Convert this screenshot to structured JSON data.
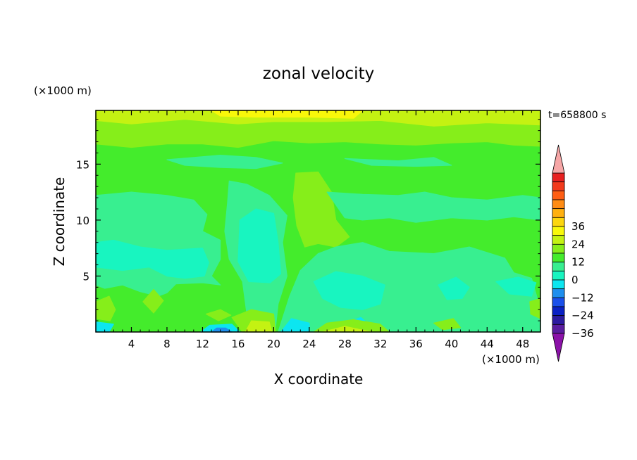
{
  "chart_data": {
    "type": "heatmap",
    "title": "zonal velocity",
    "xlabel": "X coordinate",
    "ylabel": "Z coordinate",
    "x_unit": "(×1000 m)",
    "y_unit": "(×1000 m)",
    "time_label": "t=658800 s",
    "xlim": [
      0,
      50
    ],
    "ylim": [
      0,
      19.8
    ],
    "xticks": [
      4,
      8,
      12,
      16,
      20,
      24,
      28,
      32,
      36,
      40,
      44,
      48
    ],
    "yticks": [
      5,
      10,
      15
    ],
    "background_level": 2,
    "regions": [
      {
        "level": 3,
        "points": [
          [
            0,
            19.8
          ],
          [
            50,
            19.8
          ],
          [
            50,
            16.6
          ],
          [
            47,
            16.7
          ],
          [
            44,
            17.0
          ],
          [
            40,
            16.9
          ],
          [
            36,
            16.7
          ],
          [
            32,
            16.8
          ],
          [
            28,
            17.0
          ],
          [
            24,
            16.9
          ],
          [
            20,
            17.1
          ],
          [
            16,
            16.5
          ],
          [
            12,
            16.8
          ],
          [
            8,
            16.8
          ],
          [
            4,
            16.5
          ],
          [
            0,
            16.8
          ]
        ]
      },
      {
        "level": 4,
        "points": [
          [
            0,
            19.8
          ],
          [
            50,
            19.8
          ],
          [
            50,
            18.5
          ],
          [
            44,
            18.7
          ],
          [
            38,
            18.4
          ],
          [
            32,
            18.9
          ],
          [
            26,
            18.8
          ],
          [
            20,
            18.8
          ],
          [
            16,
            18.6
          ],
          [
            10,
            19.0
          ],
          [
            4,
            18.6
          ],
          [
            0,
            18.9
          ]
        ]
      },
      {
        "level": 5,
        "points": [
          [
            13,
            19.8
          ],
          [
            30,
            19.8
          ],
          [
            29,
            19.1
          ],
          [
            24,
            19.2
          ],
          [
            18,
            19.2
          ],
          [
            14,
            19.3
          ]
        ]
      },
      {
        "level": 3,
        "points": [
          [
            22.5,
            14.2
          ],
          [
            25,
            14.3
          ],
          [
            26.5,
            12.5
          ],
          [
            27,
            10
          ],
          [
            28.5,
            8.5
          ],
          [
            27,
            7.6
          ],
          [
            25,
            7.9
          ],
          [
            23.5,
            7.6
          ],
          [
            22.6,
            9.5
          ],
          [
            22.2,
            12
          ]
        ]
      },
      {
        "level": 1,
        "points": [
          [
            0,
            12.2
          ],
          [
            4,
            12.5
          ],
          [
            8,
            12.2
          ],
          [
            11,
            11.8
          ],
          [
            12.5,
            10.5
          ],
          [
            12,
            9
          ],
          [
            14,
            8.2
          ],
          [
            14,
            6.5
          ],
          [
            13,
            5
          ],
          [
            14,
            4.2
          ],
          [
            12,
            4.4
          ],
          [
            9,
            4.3
          ],
          [
            8,
            3.5
          ],
          [
            7,
            3.2
          ],
          [
            5,
            3.6
          ],
          [
            3,
            4.2
          ],
          [
            1,
            3.9
          ],
          [
            0,
            4.2
          ]
        ]
      },
      {
        "level": 1,
        "points": [
          [
            15,
            13.5
          ],
          [
            17,
            13.2
          ],
          [
            19.5,
            12.2
          ],
          [
            21.5,
            10.4
          ],
          [
            21,
            8
          ],
          [
            21.5,
            5
          ],
          [
            20.5,
            2.5
          ],
          [
            20.2,
            0.3
          ],
          [
            18.5,
            0.4
          ],
          [
            17,
            1.5
          ],
          [
            16.5,
            4.5
          ],
          [
            15,
            6.5
          ],
          [
            14.5,
            9
          ],
          [
            14.8,
            11.5
          ]
        ]
      },
      {
        "level": 1,
        "points": [
          [
            20.5,
            0
          ],
          [
            50,
            0
          ],
          [
            50,
            2
          ],
          [
            49,
            4.8
          ],
          [
            47,
            5.3
          ],
          [
            46,
            6.6
          ],
          [
            42,
            7.6
          ],
          [
            38,
            7
          ],
          [
            33,
            7.2
          ],
          [
            30,
            8
          ],
          [
            27,
            7.6
          ],
          [
            25,
            7
          ],
          [
            23,
            5.5
          ],
          [
            21.8,
            3.2
          ]
        ]
      },
      {
        "level": 1,
        "points": [
          [
            26,
            12.5
          ],
          [
            30,
            12.3
          ],
          [
            34,
            12.2
          ],
          [
            37,
            12.5
          ],
          [
            40,
            12
          ],
          [
            44,
            11.8
          ],
          [
            48,
            12.2
          ],
          [
            50,
            12
          ],
          [
            50,
            10
          ],
          [
            47,
            10.3
          ],
          [
            44,
            10
          ],
          [
            40,
            10.2
          ],
          [
            36,
            9.8
          ],
          [
            33,
            10.2
          ],
          [
            30,
            10
          ],
          [
            28,
            10.2
          ]
        ]
      },
      {
        "level": 1,
        "points": [
          [
            8,
            15.4
          ],
          [
            14,
            15.8
          ],
          [
            18,
            15.6
          ],
          [
            21,
            15.1
          ],
          [
            18,
            14.6
          ],
          [
            14,
            14.7
          ],
          [
            10,
            14.9
          ]
        ]
      },
      {
        "level": 1,
        "points": [
          [
            28,
            15.5
          ],
          [
            34,
            15.3
          ],
          [
            38,
            15.6
          ],
          [
            40,
            14.9
          ],
          [
            36,
            14.8
          ],
          [
            31,
            14.9
          ]
        ]
      },
      {
        "level": 0,
        "points": [
          [
            16.2,
            10
          ],
          [
            18,
            11
          ],
          [
            20,
            10.6
          ],
          [
            20.5,
            8
          ],
          [
            20.8,
            5.2
          ],
          [
            19.6,
            4.4
          ],
          [
            17.2,
            4.5
          ],
          [
            16,
            6.3
          ]
        ]
      },
      {
        "level": 0,
        "points": [
          [
            0,
            8
          ],
          [
            2,
            8.2
          ],
          [
            5,
            7.6
          ],
          [
            8,
            7.3
          ],
          [
            12,
            7.5
          ],
          [
            12.7,
            6.2
          ],
          [
            12.2,
            5
          ],
          [
            10,
            4.8
          ],
          [
            8,
            5
          ],
          [
            6,
            5.8
          ],
          [
            3,
            5.5
          ],
          [
            0,
            5.8
          ]
        ]
      },
      {
        "level": 0,
        "points": [
          [
            24.5,
            4.5
          ],
          [
            27,
            5.4
          ],
          [
            30,
            5
          ],
          [
            32.5,
            4.2
          ],
          [
            32,
            2.5
          ],
          [
            30,
            2
          ],
          [
            27.5,
            2.2
          ],
          [
            25.5,
            3
          ]
        ]
      },
      {
        "level": 0,
        "points": [
          [
            38.5,
            4.2
          ],
          [
            40.5,
            4.9
          ],
          [
            42,
            4
          ],
          [
            41.2,
            3
          ],
          [
            39.5,
            2.9
          ]
        ]
      },
      {
        "level": 0,
        "points": [
          [
            45,
            4.5
          ],
          [
            47.5,
            4.9
          ],
          [
            49.5,
            4.4
          ],
          [
            49,
            3.2
          ],
          [
            46.5,
            3.4
          ]
        ]
      },
      {
        "level": -1,
        "points": [
          [
            20.8,
            0
          ],
          [
            24,
            0
          ],
          [
            24,
            0.8
          ],
          [
            22,
            1.2
          ]
        ]
      },
      {
        "level": -1,
        "points": [
          [
            28,
            0.8
          ],
          [
            29.8,
            1.3
          ],
          [
            30.8,
            0.6
          ],
          [
            29.5,
            0.2
          ]
        ]
      },
      {
        "level": -1,
        "points": [
          [
            0,
            0
          ],
          [
            1.5,
            0
          ],
          [
            2,
            0.7
          ],
          [
            0,
            0.9
          ]
        ]
      },
      {
        "level": -1,
        "points": [
          [
            11.8,
            0
          ],
          [
            16.2,
            0
          ],
          [
            15.3,
            0.7
          ],
          [
            12.8,
            0.6
          ]
        ]
      },
      {
        "level": -2,
        "points": [
          [
            13,
            0
          ],
          [
            15.3,
            0
          ],
          [
            14.6,
            0.35
          ],
          [
            13.6,
            0.35
          ]
        ]
      },
      {
        "level": 3,
        "points": [
          [
            0,
            2.7
          ],
          [
            1.5,
            3.2
          ],
          [
            2.2,
            2
          ],
          [
            1.6,
            1
          ],
          [
            0,
            1.2
          ]
        ]
      },
      {
        "level": 3,
        "points": [
          [
            5.3,
            2.7
          ],
          [
            6.5,
            3.8
          ],
          [
            7.6,
            2.8
          ],
          [
            6.5,
            1.7
          ]
        ]
      },
      {
        "level": 3,
        "points": [
          [
            12.4,
            1.6
          ],
          [
            14,
            2
          ],
          [
            15.2,
            1.5
          ],
          [
            13.8,
            1
          ]
        ]
      },
      {
        "level": 3,
        "points": [
          [
            15.3,
            1.3
          ],
          [
            17.5,
            2
          ],
          [
            20,
            1.6
          ],
          [
            20.2,
            0
          ],
          [
            16.5,
            0
          ]
        ]
      },
      {
        "level": 4,
        "points": [
          [
            16.8,
            0
          ],
          [
            19.8,
            0
          ],
          [
            19.5,
            0.9
          ],
          [
            17.5,
            1
          ]
        ]
      },
      {
        "level": 3,
        "points": [
          [
            24.5,
            0
          ],
          [
            33,
            0
          ],
          [
            32,
            0.7
          ],
          [
            29,
            1.1
          ],
          [
            26,
            0.8
          ]
        ]
      },
      {
        "level": 4,
        "points": [
          [
            25.5,
            0
          ],
          [
            31,
            0
          ],
          [
            28,
            0.5
          ]
        ]
      },
      {
        "level": 3,
        "points": [
          [
            38,
            0.8
          ],
          [
            40.2,
            1.2
          ],
          [
            41,
            0.4
          ],
          [
            39,
            0.2
          ]
        ]
      },
      {
        "level": 3,
        "points": [
          [
            48.8,
            2.7
          ],
          [
            50,
            3
          ],
          [
            50,
            1.2
          ],
          [
            48.9,
            1.6
          ]
        ]
      }
    ],
    "colorbar": {
      "labels": [
        "36",
        "24",
        "12",
        "0",
        "-12",
        "-24",
        "-36"
      ],
      "label_levels": [
        6,
        4,
        2,
        0,
        -2,
        -4,
        -6
      ],
      "levels": [
        {
          "level": -7,
          "color": "#8b12a8"
        },
        {
          "level": -6,
          "color": "#5a1d9f"
        },
        {
          "level": -5,
          "color": "#2c1ba0"
        },
        {
          "level": -4,
          "color": "#0a21c4"
        },
        {
          "level": -3,
          "color": "#1a50ea"
        },
        {
          "level": -2,
          "color": "#1e8fef"
        },
        {
          "level": -1,
          "color": "#0ce6f0"
        },
        {
          "level": 0,
          "color": "#18f5c0"
        },
        {
          "level": 1,
          "color": "#38ef90"
        },
        {
          "level": 2,
          "color": "#44ec2c"
        },
        {
          "level": 3,
          "color": "#86ee1a"
        },
        {
          "level": 4,
          "color": "#c4f212"
        },
        {
          "level": 5,
          "color": "#f8f80a"
        },
        {
          "level": 6,
          "color": "#fcd60e"
        },
        {
          "level": 7,
          "color": "#ffb010"
        },
        {
          "level": 8,
          "color": "#ff8c14"
        },
        {
          "level": 9,
          "color": "#ff5e14"
        },
        {
          "level": 10,
          "color": "#f23a1c"
        },
        {
          "level": 11,
          "color": "#e82020"
        },
        {
          "level": 12,
          "color": "#f6a6a6"
        }
      ]
    }
  }
}
